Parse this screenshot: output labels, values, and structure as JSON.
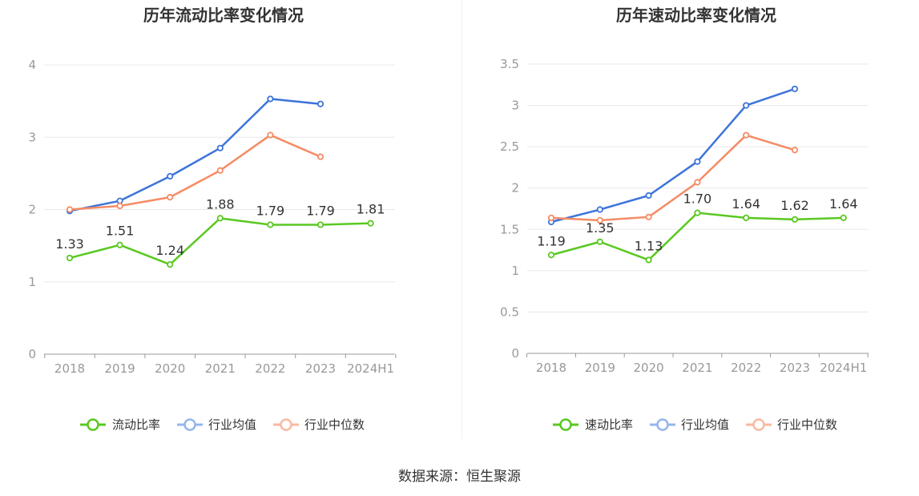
{
  "colors": {
    "main_green": "#5ac821",
    "avg_blue": "#3c74da",
    "median_orange": "#f58b64",
    "legend_blue": "#95b5ec",
    "legend_orange": "#f9b9a1",
    "title": "#333333",
    "axis_text": "#999999",
    "label_text": "#333333",
    "grid": "#e8e8e8",
    "axis_line": "#999999"
  },
  "source_text": "数据来源：恒生聚源",
  "chart_data": [
    {
      "type": "line",
      "title": "历年流动比率变化情况",
      "categories": [
        "2018",
        "2019",
        "2020",
        "2021",
        "2022",
        "2023",
        "2024H1"
      ],
      "ylim": [
        0,
        4
      ],
      "yticks": [
        0,
        1,
        2,
        3,
        4
      ],
      "ytick_labels": [
        "0",
        "1",
        "2",
        "3",
        "4"
      ],
      "series": [
        {
          "name": "流动比率",
          "key": "main",
          "values": [
            1.33,
            1.51,
            1.24,
            1.88,
            1.79,
            1.79,
            1.81
          ],
          "labels": [
            "1.33",
            "1.51",
            "1.24",
            "1.88",
            "1.79",
            "1.79",
            "1.81"
          ]
        },
        {
          "name": "行业均值",
          "key": "avg",
          "values": [
            1.98,
            2.12,
            2.46,
            2.85,
            3.53,
            3.46,
            null
          ]
        },
        {
          "name": "行业中位数",
          "key": "median",
          "values": [
            2.0,
            2.05,
            2.17,
            2.54,
            3.03,
            2.73,
            null
          ]
        }
      ]
    },
    {
      "type": "line",
      "title": "历年速动比率变化情况",
      "categories": [
        "2018",
        "2019",
        "2020",
        "2021",
        "2022",
        "2023",
        "2024H1"
      ],
      "ylim": [
        0,
        3.5
      ],
      "yticks": [
        0,
        0.5,
        1,
        1.5,
        2,
        2.5,
        3,
        3.5
      ],
      "ytick_labels": [
        "0",
        "0.5",
        "1",
        "1.5",
        "2",
        "2.5",
        "3",
        "3.5"
      ],
      "series": [
        {
          "name": "速动比率",
          "key": "main",
          "values": [
            1.19,
            1.35,
            1.13,
            1.7,
            1.64,
            1.62,
            1.64
          ],
          "labels": [
            "1.19",
            "1.35",
            "1.13",
            "1.70",
            "1.64",
            "1.62",
            "1.64"
          ]
        },
        {
          "name": "行业均值",
          "key": "avg",
          "values": [
            1.59,
            1.74,
            1.91,
            2.32,
            3.0,
            3.2,
            null
          ]
        },
        {
          "name": "行业中位数",
          "key": "median",
          "values": [
            1.64,
            1.61,
            1.65,
            2.07,
            2.64,
            2.46,
            null
          ]
        }
      ]
    }
  ]
}
